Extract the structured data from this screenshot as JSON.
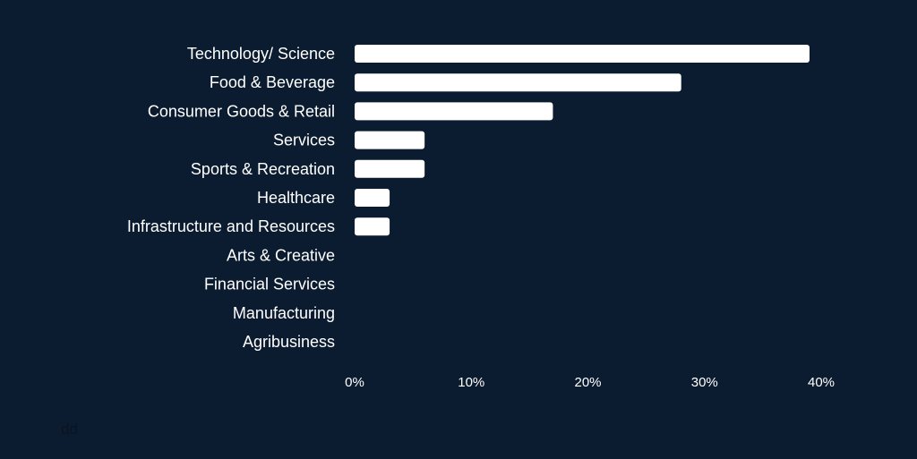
{
  "colors": {
    "background": "#0c1c30",
    "bar": "#ffffff",
    "text": "#ffffff",
    "footer_text": "#0b1320"
  },
  "footer_text": "dd",
  "chart_data": {
    "type": "bar",
    "orientation": "horizontal",
    "categories": [
      "Technology/ Science",
      "Food & Beverage",
      "Consumer Goods & Retail",
      "Services",
      "Sports & Recreation",
      "Healthcare",
      "Infrastructure and Resources",
      "Arts & Creative",
      "Financial Services",
      "Manufacturing",
      "Agribusiness"
    ],
    "values": [
      39,
      28,
      17,
      6,
      6,
      3,
      3,
      0,
      0,
      0,
      0
    ],
    "xlim": [
      0,
      40
    ],
    "xticks": [
      0,
      10,
      20,
      30,
      40
    ],
    "xtick_labels": [
      "0%",
      "10%",
      "20%",
      "30%",
      "40%"
    ],
    "title": "",
    "xlabel": "",
    "ylabel": "",
    "grid": false,
    "legend": "none"
  }
}
